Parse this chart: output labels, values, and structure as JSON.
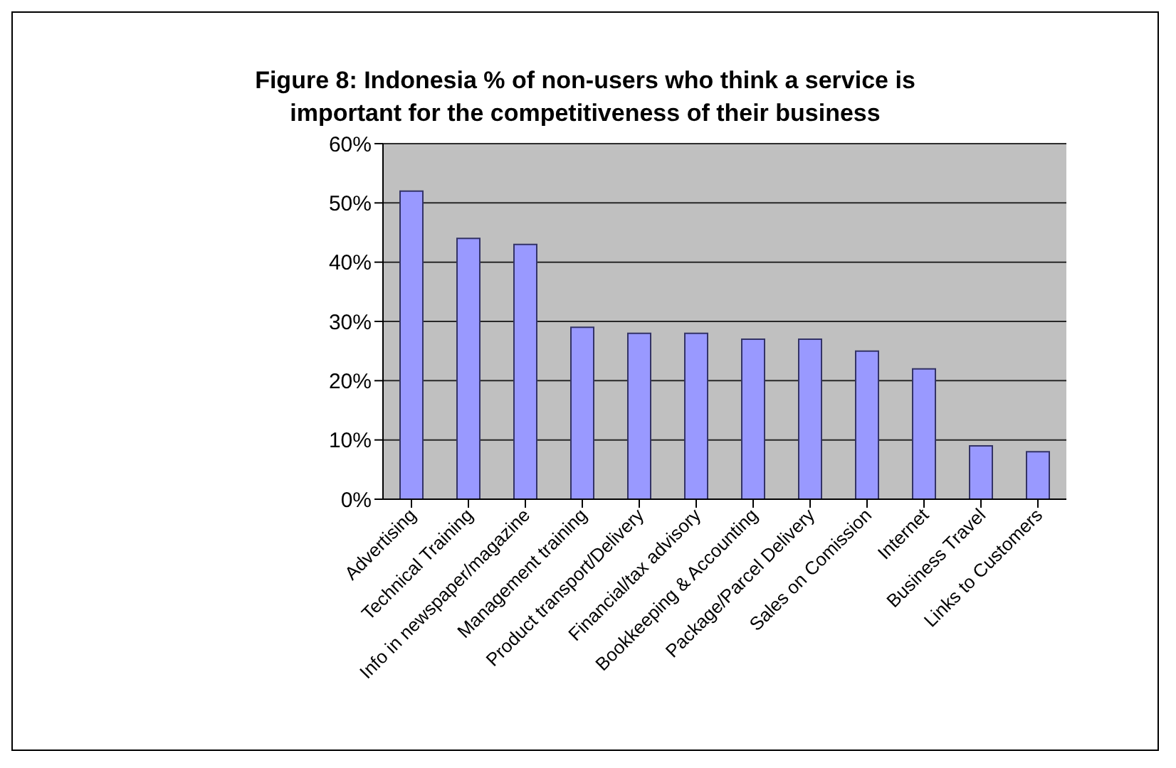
{
  "chart_data": {
    "type": "bar",
    "title": "Figure 8:  Indonesia % of non-users who think a service is important for the competitiveness of their business",
    "categories": [
      "Advertising",
      "Technical Training",
      "Info in newspaper/magazine",
      "Management training",
      "Product transport/Delivery",
      "Financial/tax advisory",
      "Bookkeeping & Accounting",
      "Package/Parcel Delivery",
      "Sales on Comission",
      "Internet",
      "Business Travel",
      "Links to Customers"
    ],
    "values": [
      52,
      44,
      43,
      29,
      28,
      28,
      27,
      27,
      25,
      22,
      9,
      8
    ],
    "color": "#9999ff",
    "ylim": [
      0,
      60
    ],
    "yticks": [
      {
        "value": 0,
        "label": "0%"
      },
      {
        "value": 10,
        "label": "10%"
      },
      {
        "value": 20,
        "label": "20%"
      },
      {
        "value": 30,
        "label": "30%"
      },
      {
        "value": 40,
        "label": "40%"
      },
      {
        "value": 50,
        "label": "50%"
      },
      {
        "value": 60,
        "label": "60%"
      }
    ],
    "grid": "y"
  }
}
